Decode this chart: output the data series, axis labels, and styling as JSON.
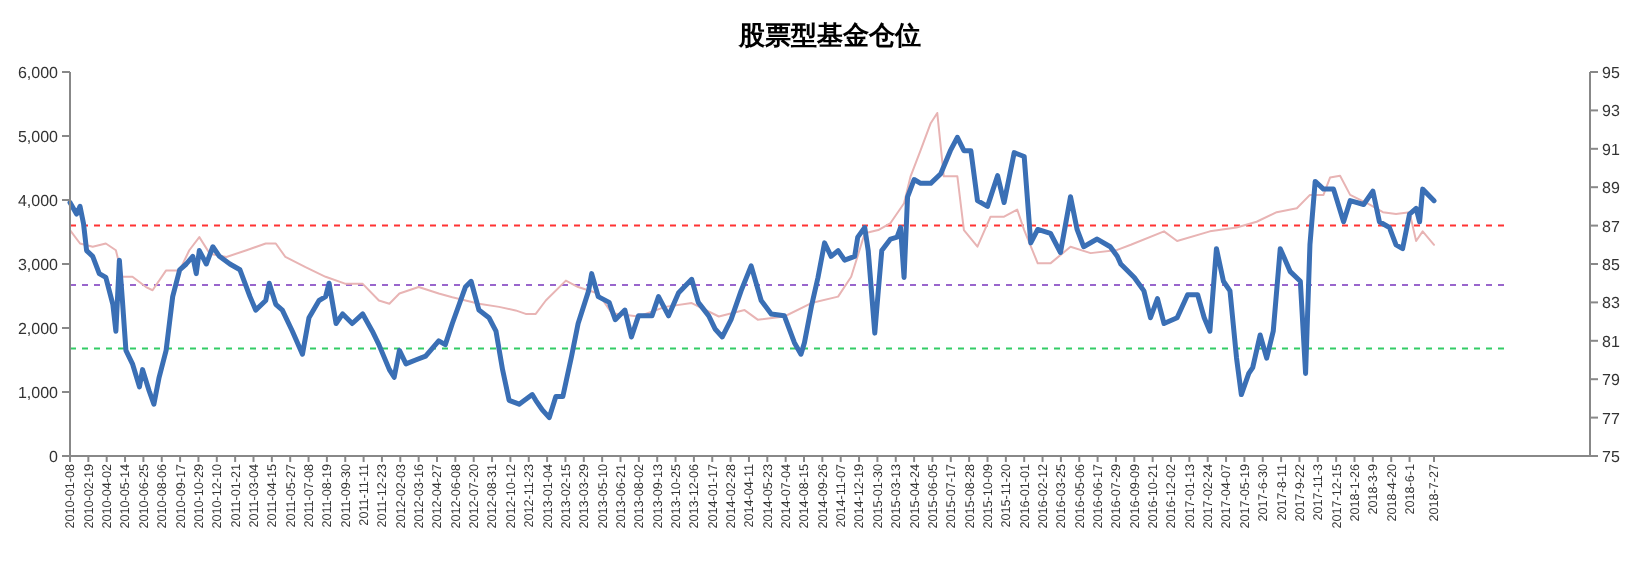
{
  "chart_data": {
    "type": "line",
    "title": "股票型基金仓位",
    "xlim": [
      "2010-01-08",
      "2019-07-19"
    ],
    "xticks": [
      "2010-01-08",
      "2010-02-19",
      "2010-04-02",
      "2010-05-14",
      "2010-06-25",
      "2010-08-06",
      "2010-09-17",
      "2010-10-29",
      "2010-12-10",
      "2011-01-21",
      "2011-03-04",
      "2011-04-15",
      "2011-05-27",
      "2011-07-08",
      "2011-08-19",
      "2011-09-30",
      "2011-11-11",
      "2011-12-23",
      "2012-02-03",
      "2012-03-16",
      "2012-04-27",
      "2012-06-08",
      "2012-07-20",
      "2012-08-31",
      "2012-10-12",
      "2012-11-23",
      "2013-01-04",
      "2013-02-15",
      "2013-03-29",
      "2013-05-10",
      "2013-06-21",
      "2013-08-02",
      "2013-09-13",
      "2013-10-25",
      "2013-12-06",
      "2014-01-17",
      "2014-02-28",
      "2014-04-11",
      "2014-05-23",
      "2014-07-04",
      "2014-08-15",
      "2014-09-26",
      "2014-11-07",
      "2014-12-19",
      "2015-01-30",
      "2015-03-13",
      "2015-04-24",
      "2015-06-05",
      "2015-07-17",
      "2015-08-28",
      "2015-10-09",
      "2015-11-20",
      "2016-01-01",
      "2016-02-12",
      "2016-03-25",
      "2016-05-06",
      "2016-06-17",
      "2016-07-29",
      "2016-09-09",
      "2016-10-21",
      "2016-12-02",
      "2017-01-13",
      "2017-02-24",
      "2017-04-07",
      "2017-05-19",
      {
        "value": "2017-06-30",
        "label": "2017-6-30"
      },
      {
        "value": "2017-08-11",
        "label": "2017-8-11"
      },
      {
        "value": "2017-09-22",
        "label": "2017-9-22"
      },
      {
        "value": "2017-11-03",
        "label": "2017-11-3"
      },
      {
        "value": "2017-12-15",
        "label": "2017-12-15"
      },
      {
        "value": "2018-01-26",
        "label": "2018-1-26"
      },
      {
        "value": "2018-03-09",
        "label": "2018-3-9"
      },
      {
        "value": "2018-04-20",
        "label": "2018-4-20"
      },
      {
        "value": "2018-06-01",
        "label": "2018-6-1"
      },
      {
        "value": "2018-07-27",
        "label": "2018-7-27"
      }
    ],
    "ylim": [
      0,
      6000
    ],
    "yticks": [
      0,
      {
        "value": 1000,
        "label": "1,000"
      },
      {
        "value": 2000,
        "label": "2,000"
      },
      {
        "value": 3000,
        "label": "3,000"
      },
      {
        "value": 4000,
        "label": "4,000"
      },
      {
        "value": 5000,
        "label": "5,000"
      },
      {
        "value": 6000,
        "label": "6,000"
      }
    ],
    "y2lim": [
      75,
      95
    ],
    "y2ticks": [
      75,
      77,
      79,
      81,
      83,
      85,
      87,
      89,
      91,
      93,
      95
    ],
    "series": [
      {
        "color": "#e8b4b4",
        "x": [
          "2010-01-08",
          "2010-01-31",
          "2010-03-01",
          "2010-03-31",
          "2010-04-23",
          "2010-05-08",
          "2010-05-31",
          "2010-07-01",
          "2010-07-16",
          "2010-08-16",
          "2010-09-16",
          "2010-10-08",
          "2010-10-31",
          "2010-11-24",
          "2011-01-01",
          "2011-02-16",
          "2011-04-01",
          "2011-04-24",
          "2011-05-16",
          "2011-07-01",
          "2011-08-16",
          "2011-10-01",
          "2011-11-09",
          "2011-12-16",
          "2012-01-09",
          "2012-02-01",
          "2012-03-16",
          "2012-05-01",
          "2012-06-01",
          "2012-08-01",
          "2012-09-16",
          "2012-10-24",
          "2012-11-16",
          "2012-12-09",
          "2013-01-01",
          "2013-02-16",
          "2013-03-16",
          "2013-05-01",
          "2013-06-01",
          "2013-08-01",
          "2013-10-01",
          "2013-12-01",
          "2014-02-01",
          "2014-04-01",
          "2014-05-01",
          "2014-07-01",
          "2014-09-01",
          "2014-11-01",
          "2014-12-01",
          "2015-01-01",
          "2015-02-01",
          "2015-03-01",
          "2015-04-01",
          "2015-04-16",
          "2015-05-09",
          "2015-06-01",
          "2015-06-16",
          "2015-07-01",
          "2015-08-01",
          "2015-08-16",
          "2015-09-16",
          "2015-10-16",
          "2015-11-16",
          "2015-12-16",
          "2016-01-01",
          "2016-02-01",
          "2016-03-01",
          "2016-04-16",
          "2016-06-01",
          "2016-08-01",
          "2016-09-01",
          "2016-11-16",
          "2016-12-16",
          "2017-03-01",
          "2017-05-01",
          "2017-06-16",
          "2017-08-01",
          "2017-09-16",
          "2017-10-16",
          "2017-11-16",
          "2017-12-01",
          "2017-12-24",
          "2018-01-16",
          "2018-03-01",
          "2018-04-01",
          "2018-05-01",
          "2018-06-01",
          "2018-06-16",
          "2018-07-01",
          "2018-07-27"
        ],
        "values": [
          3530,
          3320,
          3270,
          3320,
          3215,
          2800,
          2800,
          2640,
          2590,
          2900,
          2900,
          3215,
          3420,
          3160,
          3110,
          3215,
          3320,
          3320,
          3110,
          2950,
          2800,
          2690,
          2690,
          2430,
          2380,
          2540,
          2640,
          2540,
          2480,
          2380,
          2330,
          2275,
          2220,
          2220,
          2430,
          2740,
          2640,
          2540,
          2230,
          2180,
          2330,
          2390,
          2180,
          2280,
          2130,
          2180,
          2390,
          2490,
          2800,
          3480,
          3530,
          3640,
          3950,
          4370,
          4780,
          5200,
          5360,
          4370,
          4370,
          3530,
          3270,
          3740,
          3740,
          3850,
          3530,
          3010,
          3010,
          3270,
          3170,
          3220,
          3300,
          3510,
          3360,
          3510,
          3570,
          3660,
          3810,
          3870,
          4080,
          4080,
          4350,
          4380,
          4080,
          3930,
          3810,
          3780,
          3810,
          3360,
          3510,
          3300
        ]
      },
      {
        "color": "#3a6fb5",
        "axis": "y2",
        "x": [
          "2010-01-08",
          "2010-01-23",
          "2010-01-31",
          "2010-02-08",
          "2010-02-15",
          "2010-03-01",
          "2010-03-16",
          "2010-03-31",
          "2010-04-16",
          "2010-04-23",
          "2010-05-01",
          "2010-05-08",
          "2010-05-16",
          "2010-05-31",
          "2010-06-16",
          "2010-06-23",
          "2010-07-08",
          "2010-07-19",
          "2010-07-31",
          "2010-08-16",
          "2010-08-31",
          "2010-09-16",
          "2010-10-01",
          "2010-10-16",
          "2010-10-24",
          "2010-10-31",
          "2010-11-16",
          "2010-12-01",
          "2010-12-16",
          "2011-01-09",
          "2011-02-01",
          "2011-02-24",
          "2011-03-09",
          "2011-04-01",
          "2011-04-09",
          "2011-04-24",
          "2011-05-09",
          "2011-06-01",
          "2011-06-24",
          "2011-07-09",
          "2011-08-01",
          "2011-08-16",
          "2011-08-24",
          "2011-09-09",
          "2011-09-24",
          "2011-10-16",
          "2011-11-09",
          "2011-12-01",
          "2011-12-16",
          "2012-01-09",
          "2012-01-20",
          "2012-02-01",
          "2012-02-16",
          "2012-03-09",
          "2012-04-01",
          "2012-05-01",
          "2012-05-16",
          "2012-06-01",
          "2012-07-01",
          "2012-07-14",
          "2012-08-01",
          "2012-08-24",
          "2012-09-09",
          "2012-09-24",
          "2012-10-09",
          "2012-11-01",
          "2012-12-01",
          "2012-12-09",
          "2012-12-24",
          "2013-01-09",
          "2013-01-24",
          "2013-02-09",
          "2013-03-01",
          "2013-03-16",
          "2013-04-09",
          "2013-04-16",
          "2013-05-01",
          "2013-05-26",
          "2013-06-09",
          "2013-07-01",
          "2013-07-16",
          "2013-08-01",
          "2013-09-01",
          "2013-09-16",
          "2013-10-09",
          "2013-11-01",
          "2013-12-01",
          "2013-12-16",
          "2014-01-09",
          "2014-01-24",
          "2014-02-09",
          "2014-03-01",
          "2014-03-24",
          "2014-04-16",
          "2014-05-09",
          "2014-06-01",
          "2014-07-01",
          "2014-07-24",
          "2014-08-08",
          "2014-08-16",
          "2014-09-01",
          "2014-09-16",
          "2014-10-01",
          "2014-10-16",
          "2014-11-01",
          "2014-11-16",
          "2014-12-09",
          "2014-12-16",
          "2015-01-01",
          "2015-01-09",
          "2015-01-24",
          "2015-02-01",
          "2015-02-09",
          "2015-03-01",
          "2015-03-16",
          "2015-03-24",
          "2015-04-01",
          "2015-04-09",
          "2015-04-24",
          "2015-05-09",
          "2015-06-01",
          "2015-06-24",
          "2015-07-16",
          "2015-08-01",
          "2015-08-16",
          "2015-09-01",
          "2015-09-16",
          "2015-10-09",
          "2015-11-01",
          "2015-11-16",
          "2015-12-09",
          "2016-01-01",
          "2016-01-16",
          "2016-02-01",
          "2016-03-01",
          "2016-03-24",
          "2016-04-16",
          "2016-05-01",
          "2016-05-16",
          "2016-06-16",
          "2016-07-16",
          "2016-08-01",
          "2016-08-09",
          "2016-09-09",
          "2016-10-01",
          "2016-10-16",
          "2016-11-01",
          "2016-11-16",
          "2016-12-16",
          "2017-01-09",
          "2017-02-01",
          "2017-02-16",
          "2017-03-01",
          "2017-03-16",
          "2017-04-01",
          "2017-04-16",
          "2017-05-01",
          "2017-05-12",
          "2017-05-29",
          "2017-06-07",
          "2017-06-24",
          "2017-07-09",
          "2017-07-24",
          "2017-08-09",
          "2017-09-01",
          "2017-09-24",
          "2017-10-06",
          "2017-10-16",
          "2017-10-28",
          "2017-11-16",
          "2017-12-09",
          "2018-01-01",
          "2018-01-16",
          "2018-02-16",
          "2018-03-09",
          "2018-03-24",
          "2018-04-16",
          "2018-05-01",
          "2018-05-16",
          "2018-06-01",
          "2018-06-16",
          "2018-06-24",
          "2018-07-01",
          "2018-07-27"
        ],
        "values": [
          88.2,
          87.6,
          88.0,
          87.1,
          85.7,
          85.4,
          84.5,
          84.3,
          82.9,
          81.5,
          85.2,
          83.1,
          80.5,
          79.8,
          78.6,
          79.5,
          78.4,
          77.7,
          79.1,
          80.5,
          83.3,
          84.7,
          85.0,
          85.4,
          84.5,
          85.7,
          85.0,
          85.9,
          85.4,
          85.0,
          84.7,
          83.3,
          82.6,
          83.1,
          84.0,
          82.9,
          82.6,
          81.5,
          80.3,
          82.2,
          83.1,
          83.3,
          84.0,
          81.9,
          82.4,
          81.9,
          82.4,
          81.5,
          80.8,
          79.5,
          79.1,
          80.5,
          79.8,
          80.0,
          80.2,
          81.0,
          80.8,
          81.9,
          83.8,
          84.1,
          82.6,
          82.2,
          81.5,
          79.5,
          77.9,
          77.7,
          78.2,
          77.9,
          77.4,
          77.0,
          78.1,
          78.1,
          80.2,
          81.9,
          83.6,
          84.5,
          83.3,
          83.0,
          82.1,
          82.6,
          81.2,
          82.3,
          82.3,
          83.3,
          82.3,
          83.5,
          84.2,
          83.0,
          82.3,
          81.6,
          81.2,
          82.1,
          83.6,
          84.9,
          83.1,
          82.4,
          82.3,
          80.9,
          80.3,
          80.9,
          82.8,
          84.3,
          86.1,
          85.4,
          85.7,
          85.2,
          85.4,
          86.4,
          86.9,
          85.7,
          81.4,
          83.6,
          85.7,
          86.3,
          86.4,
          86.9,
          84.3,
          88.5,
          89.4,
          89.2,
          89.2,
          89.7,
          90.9,
          91.6,
          90.9,
          90.9,
          88.3,
          88.0,
          89.6,
          88.2,
          90.8,
          90.6,
          86.1,
          86.8,
          86.6,
          85.6,
          88.5,
          86.8,
          85.9,
          86.3,
          85.9,
          85.4,
          85.0,
          84.3,
          83.6,
          82.2,
          83.2,
          81.9,
          82.2,
          83.4,
          83.4,
          82.2,
          81.5,
          85.8,
          84.1,
          83.6,
          80.1,
          78.2,
          79.3,
          79.6,
          81.3,
          80.1,
          81.5,
          85.8,
          84.6,
          84.1,
          79.3,
          86.0,
          89.3,
          88.9,
          88.9,
          87.2,
          88.3,
          88.1,
          88.8,
          87.2,
          86.9,
          86.0,
          85.8,
          87.6,
          87.9,
          87.2,
          88.9,
          88.3
        ]
      }
    ],
    "ref_lines": [
      {
        "axis": "y2",
        "value": 87.0,
        "color": "#ff3333",
        "line_style": "dashed"
      },
      {
        "axis": "y2",
        "value": 83.9,
        "color": "#9966cc",
        "line_style": "dashed"
      },
      {
        "axis": "y2",
        "value": 80.6,
        "color": "#33cc66",
        "line_style": "dashed"
      }
    ]
  }
}
